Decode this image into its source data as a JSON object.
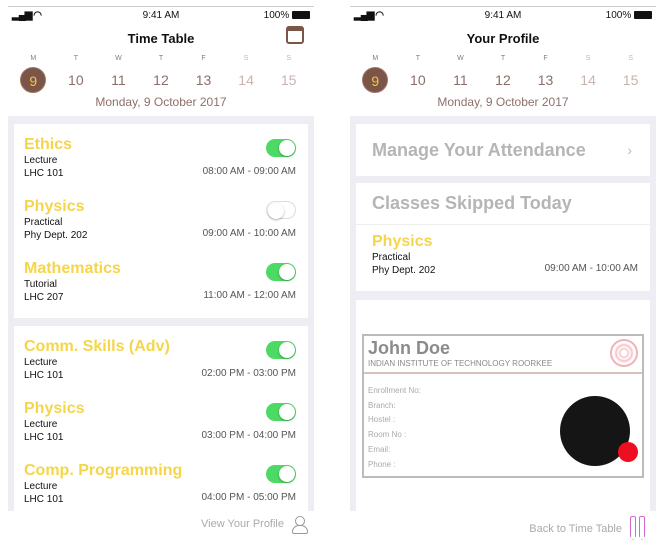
{
  "status": {
    "time": "9:41 AM",
    "battery": "100%",
    "signal": "••ıl"
  },
  "week": {
    "letters": [
      "M",
      "T",
      "W",
      "T",
      "F",
      "S",
      "S"
    ],
    "dates": [
      "9",
      "10",
      "11",
      "12",
      "13",
      "14",
      "15"
    ],
    "selected": "9"
  },
  "date_label": "Monday, 9 October 2017",
  "colors": {
    "accent": "#f5d54a",
    "brown": "#7a5548",
    "toggle_on": "#4cd964"
  },
  "timetable": {
    "title": "Time Table",
    "cards": [
      {
        "items": [
          {
            "subject": "Ethics",
            "type": "Lecture",
            "room": "LHC 101",
            "time": "08:00 AM - 09:00 AM",
            "enabled": true
          },
          {
            "subject": "Physics",
            "type": "Practical",
            "room": "Phy Dept. 202",
            "time": "09:00 AM - 10:00 AM",
            "enabled": false
          },
          {
            "subject": "Mathematics",
            "type": "Tutorial",
            "room": "LHC 207",
            "time": "11:00 AM - 12:00 AM",
            "enabled": true
          }
        ]
      },
      {
        "items": [
          {
            "subject": "Comm. Skills (Adv)",
            "type": "Lecture",
            "room": "LHC 101",
            "time": "02:00 PM - 03:00 PM",
            "enabled": true
          },
          {
            "subject": "Physics",
            "type": "Lecture",
            "room": "LHC 101",
            "time": "03:00 PM - 04:00 PM",
            "enabled": true
          },
          {
            "subject": "Comp. Programming",
            "type": "Lecture",
            "room": "LHC 101",
            "time": "04:00 PM - 05:00 PM",
            "enabled": true
          }
        ]
      }
    ],
    "footer": "View Your Profile"
  },
  "profile": {
    "title": "Your Profile",
    "manage": "Manage Your Attendance",
    "skipped_title": "Classes Skipped Today",
    "skipped": {
      "subject": "Physics",
      "type": "Practical",
      "room": "Phy Dept. 202",
      "time": "09:00 AM - 10:00 AM"
    },
    "id": {
      "name": "John Doe",
      "institute": "INDIAN INSTITUTE OF TECHNOLOGY ROORKEE",
      "fields": [
        "Enrollment No:",
        "Branch:",
        "Hostel :",
        "Room No :",
        "Email:",
        "Phone :"
      ]
    },
    "footer": "Back to Time Table"
  }
}
